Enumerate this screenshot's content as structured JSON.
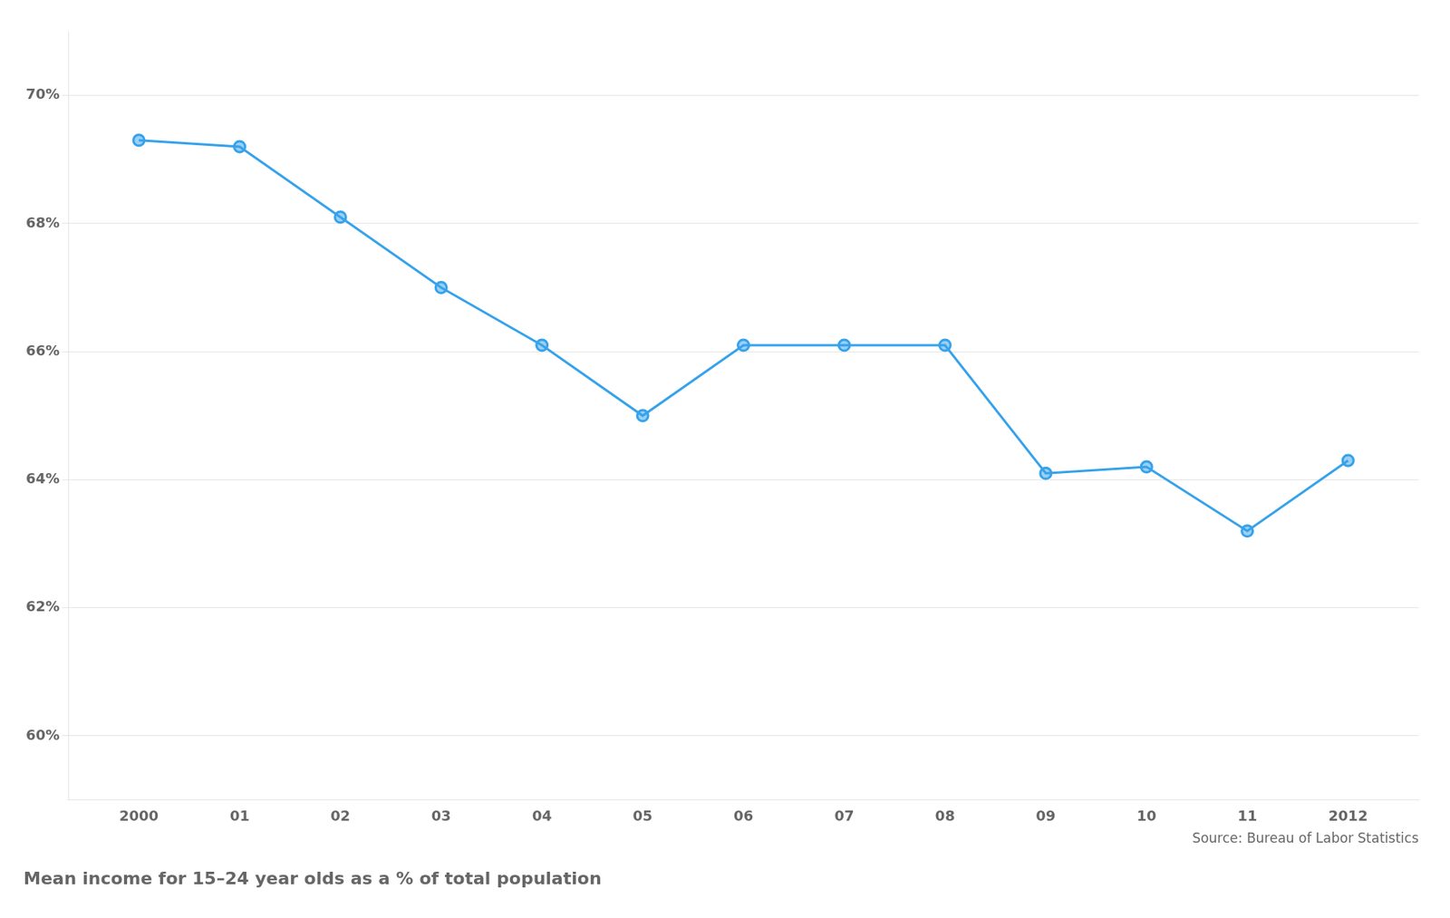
{
  "chart_data": {
    "type": "line",
    "title": "Mean income for 15–24 year olds as a % of total population",
    "source": "Source: Bureau of Labor Statistics",
    "x": [
      2000,
      2001,
      2002,
      2003,
      2004,
      2005,
      2006,
      2007,
      2008,
      2009,
      2010,
      2011,
      2012
    ],
    "values": [
      69.3,
      69.2,
      68.1,
      67.0,
      66.1,
      65.0,
      66.1,
      66.1,
      66.1,
      64.1,
      64.2,
      63.2,
      64.3
    ],
    "xlim": [
      1999.3,
      2012.7
    ],
    "xticks": [
      2000,
      {
        "value": 2001,
        "label": "01"
      },
      {
        "value": 2002,
        "label": "02"
      },
      {
        "value": 2003,
        "label": "03"
      },
      {
        "value": 2004,
        "label": "04"
      },
      {
        "value": 2005,
        "label": "05"
      },
      {
        "value": 2006,
        "label": "06"
      },
      {
        "value": 2007,
        "label": "07"
      },
      {
        "value": 2008,
        "label": "08"
      },
      {
        "value": 2009,
        "label": "09"
      },
      {
        "value": 2010,
        "label": "10"
      },
      {
        "value": 2011,
        "label": "11"
      },
      2012
    ],
    "ylim": [
      59.0,
      71.0
    ],
    "yticks": [
      {
        "value": 60,
        "label": "60%"
      },
      {
        "value": 62,
        "label": "62%"
      },
      {
        "value": 64,
        "label": "64%"
      },
      {
        "value": 66,
        "label": "66%"
      },
      {
        "value": 68,
        "label": "68%"
      },
      {
        "value": 70,
        "label": "70%"
      }
    ],
    "grid": "y",
    "marker": "circle"
  }
}
